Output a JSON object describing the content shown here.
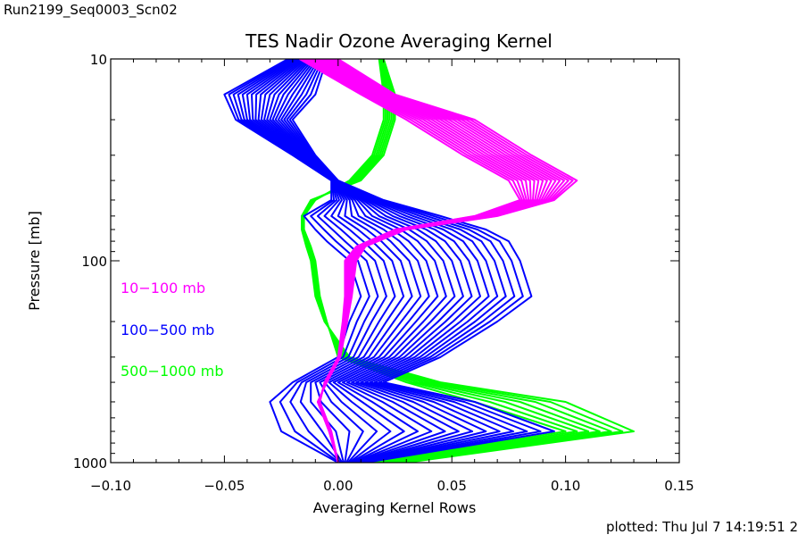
{
  "header": {
    "run_id": "Run2199_Seq0003_Scn02",
    "plotted": "plotted: Thu Jul  7 14:19:51 2"
  },
  "chart_data": {
    "type": "line",
    "title": "TES Nadir Ozone Averaging Kernel",
    "xlabel": "Averaging Kernel Rows",
    "ylabel": "Pressure [mb]",
    "xlim": [
      -0.1,
      0.15
    ],
    "ylim": [
      1000,
      10
    ],
    "yscale": "log",
    "x_ticks": [
      -0.1,
      -0.05,
      0.0,
      0.05,
      0.1,
      0.15
    ],
    "x_tick_labels": [
      "−0.10",
      "−0.05",
      "0.00",
      "0.05",
      "0.10",
      "0.15"
    ],
    "y_ticks": [
      10,
      100,
      1000
    ],
    "y_tick_labels": [
      "10",
      "100",
      "1000"
    ],
    "grid": false,
    "legend": {
      "placement": "left",
      "entries": [
        {
          "label": "10−100 mb",
          "color": "#ff00ff"
        },
        {
          "label": "100−500 mb",
          "color": "#0000ff"
        },
        {
          "label": "500−1000 mb",
          "color": "#00ff00"
        }
      ]
    },
    "groups": [
      {
        "name": "10−100 mb",
        "color": "#ff00ff",
        "count": 17,
        "pressure": [
          10,
          15,
          20,
          30,
          40,
          50,
          60,
          70,
          85,
          100,
          150,
          200,
          300,
          400,
          500,
          700,
          1000
        ],
        "first": [
          -0.017,
          0.01,
          0.03,
          0.055,
          0.075,
          0.08,
          0.06,
          0.025,
          0.008,
          0.003,
          0.003,
          0.002,
          0.0,
          -0.006,
          -0.008,
          -0.003,
          0.0
        ],
        "last": [
          0.0,
          0.025,
          0.06,
          0.085,
          0.105,
          0.095,
          0.07,
          0.03,
          0.012,
          0.008,
          0.006,
          0.004,
          0.001,
          -0.005,
          -0.009,
          -0.004,
          0.0
        ]
      },
      {
        "name": "100−500 mb",
        "color": "#0000ff",
        "count": 21,
        "pressure": [
          10,
          15,
          20,
          30,
          40,
          50,
          60,
          70,
          80,
          100,
          150,
          200,
          300,
          400,
          500,
          700,
          1000
        ],
        "first": [
          -0.022,
          -0.05,
          -0.045,
          -0.02,
          -0.003,
          -0.003,
          -0.015,
          -0.01,
          -0.005,
          0.005,
          0.01,
          0.005,
          0.0,
          -0.02,
          -0.03,
          -0.025,
          0.0
        ],
        "last": [
          -0.005,
          -0.01,
          -0.02,
          -0.01,
          0.0,
          0.02,
          0.045,
          0.065,
          0.075,
          0.08,
          0.085,
          0.07,
          0.045,
          0.02,
          0.06,
          0.095,
          0.012
        ]
      },
      {
        "name": "500−1000 mb",
        "color": "#00ff00",
        "count": 7,
        "pressure": [
          10,
          15,
          20,
          30,
          40,
          50,
          60,
          70,
          85,
          100,
          150,
          200,
          300,
          400,
          500,
          700,
          1000
        ],
        "first": [
          0.018,
          0.02,
          0.02,
          0.015,
          0.005,
          -0.01,
          -0.015,
          -0.015,
          -0.012,
          -0.01,
          -0.008,
          -0.005,
          0.0,
          0.03,
          0.06,
          0.1,
          0.015
        ],
        "last": [
          0.02,
          0.025,
          0.025,
          0.02,
          0.01,
          -0.012,
          -0.016,
          -0.016,
          -0.014,
          -0.012,
          -0.01,
          -0.006,
          0.005,
          0.045,
          0.1,
          0.13,
          0.03
        ]
      }
    ]
  }
}
